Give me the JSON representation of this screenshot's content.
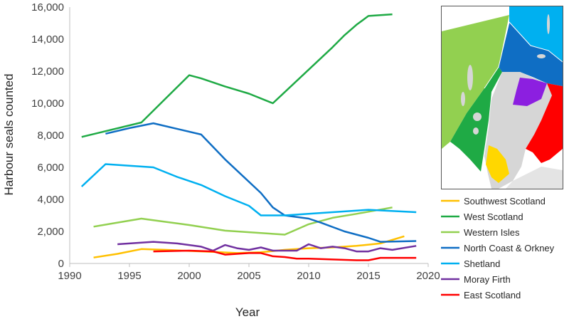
{
  "chart_data": {
    "type": "line",
    "title": "",
    "xlabel": "Year",
    "ylabel": "Harbour seals counted",
    "xlim": [
      1990,
      2020
    ],
    "ylim": [
      0,
      16000
    ],
    "xticks": [
      "1990",
      "1995",
      "2000",
      "2005",
      "2010",
      "2015",
      "2020"
    ],
    "yticks": [
      "0",
      "2,000",
      "4,000",
      "6,000",
      "8,000",
      "10,000",
      "12,000",
      "14,000",
      "16,000"
    ],
    "grid": false,
    "legend_position": "right",
    "series": [
      {
        "name": "Southwest Scotland",
        "color": "#FFC000",
        "points": [
          [
            1992,
            370
          ],
          [
            1994,
            600
          ],
          [
            1996,
            900
          ],
          [
            1998,
            850
          ],
          [
            2000,
            780
          ],
          [
            2002,
            720
          ],
          [
            2004,
            650
          ],
          [
            2006,
            700
          ],
          [
            2008,
            850
          ],
          [
            2010,
            950
          ],
          [
            2012,
            1000
          ],
          [
            2014,
            1100
          ],
          [
            2016,
            1250
          ],
          [
            2018,
            1700
          ]
        ]
      },
      {
        "name": "West Scotland",
        "color": "#1FAA45",
        "points": [
          [
            1991,
            7900
          ],
          [
            1996,
            8800
          ],
          [
            2000,
            11750
          ],
          [
            2001,
            11550
          ],
          [
            2003,
            11050
          ],
          [
            2005,
            10600
          ],
          [
            2007,
            10000
          ],
          [
            2008,
            10700
          ],
          [
            2010,
            12100
          ],
          [
            2012,
            13500
          ],
          [
            2013,
            14250
          ],
          [
            2014,
            14900
          ],
          [
            2015,
            15450
          ],
          [
            2017,
            15550
          ]
        ]
      },
      {
        "name": "Western Isles",
        "color": "#92D050",
        "points": [
          [
            1992,
            2300
          ],
          [
            1994,
            2550
          ],
          [
            1996,
            2800
          ],
          [
            1998,
            2600
          ],
          [
            2000,
            2400
          ],
          [
            2003,
            2050
          ],
          [
            2005,
            1950
          ],
          [
            2008,
            1800
          ],
          [
            2010,
            2450
          ],
          [
            2012,
            2850
          ],
          [
            2014,
            3100
          ],
          [
            2017,
            3500
          ]
        ]
      },
      {
        "name": "North Coast & Orkney",
        "color": "#0F6EC4",
        "points": [
          [
            1993,
            8100
          ],
          [
            1995,
            8450
          ],
          [
            1997,
            8750
          ],
          [
            2001,
            8050
          ],
          [
            2003,
            6500
          ],
          [
            2006,
            4400
          ],
          [
            2007,
            3500
          ],
          [
            2008,
            3000
          ],
          [
            2010,
            2800
          ],
          [
            2011,
            2550
          ],
          [
            2013,
            2000
          ],
          [
            2015,
            1600
          ],
          [
            2016,
            1350
          ],
          [
            2019,
            1400
          ]
        ]
      },
      {
        "name": "Shetland",
        "color": "#00B0F0",
        "points": [
          [
            1991,
            4800
          ],
          [
            1993,
            6200
          ],
          [
            1995,
            6100
          ],
          [
            1997,
            6000
          ],
          [
            1999,
            5400
          ],
          [
            2001,
            4900
          ],
          [
            2003,
            4200
          ],
          [
            2005,
            3600
          ],
          [
            2006,
            3000
          ],
          [
            2008,
            3000
          ],
          [
            2010,
            3100
          ],
          [
            2012,
            3200
          ],
          [
            2015,
            3350
          ],
          [
            2019,
            3200
          ]
        ]
      },
      {
        "name": "Moray Firth",
        "color": "#7030A0",
        "points": [
          [
            1994,
            1200
          ],
          [
            1996,
            1300
          ],
          [
            1997,
            1350
          ],
          [
            1999,
            1250
          ],
          [
            2001,
            1050
          ],
          [
            2002,
            800
          ],
          [
            2003,
            1150
          ],
          [
            2004,
            950
          ],
          [
            2005,
            850
          ],
          [
            2006,
            1000
          ],
          [
            2007,
            800
          ],
          [
            2009,
            800
          ],
          [
            2010,
            1200
          ],
          [
            2011,
            950
          ],
          [
            2012,
            1050
          ],
          [
            2013,
            950
          ],
          [
            2014,
            750
          ],
          [
            2015,
            750
          ],
          [
            2016,
            950
          ],
          [
            2017,
            850
          ],
          [
            2019,
            1100
          ]
        ]
      },
      {
        "name": "East Scotland",
        "color": "#FF0000",
        "points": [
          [
            1997,
            750
          ],
          [
            2000,
            800
          ],
          [
            2002,
            750
          ],
          [
            2003,
            550
          ],
          [
            2004,
            600
          ],
          [
            2005,
            650
          ],
          [
            2006,
            650
          ],
          [
            2007,
            450
          ],
          [
            2008,
            400
          ],
          [
            2009,
            300
          ],
          [
            2010,
            300
          ],
          [
            2012,
            250
          ],
          [
            2014,
            200
          ],
          [
            2015,
            200
          ],
          [
            2016,
            350
          ],
          [
            2019,
            350
          ]
        ]
      }
    ]
  }
}
